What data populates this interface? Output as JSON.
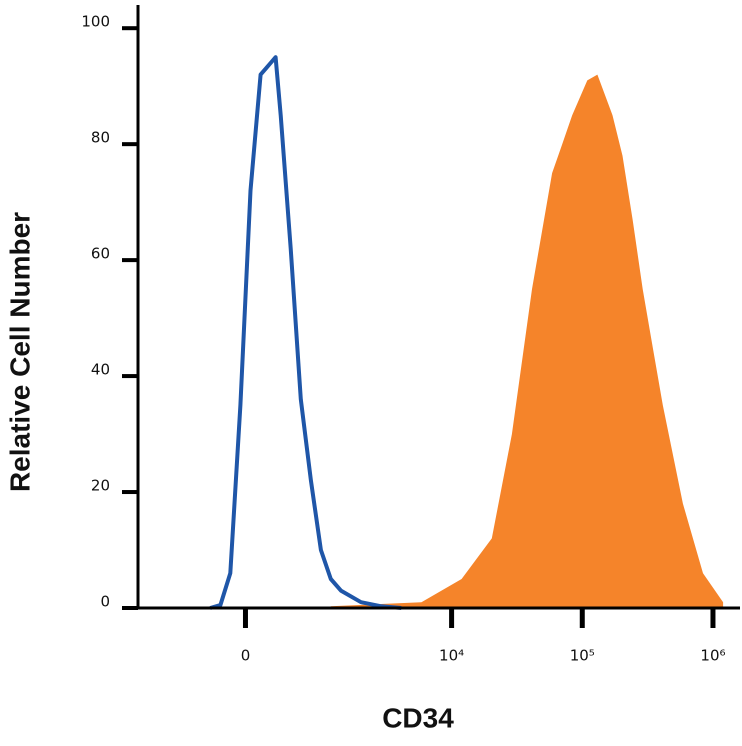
{
  "chart_data": {
    "type": "histogram-overlay",
    "x_label": "CD34",
    "y_label": "Relative Cell Number",
    "xscale": "asinh",
    "xlim": [
      -1720,
      1610000
    ],
    "ylim": [
      0,
      104
    ],
    "xticks": [
      {
        "value": 0,
        "label": "0"
      },
      {
        "value": 10000,
        "label": "10⁴"
      },
      {
        "value": 100000,
        "label": "10⁵"
      },
      {
        "value": 1000000,
        "label": "10⁶"
      }
    ],
    "yticks": [
      0,
      20,
      40,
      60,
      80,
      100
    ],
    "series": [
      {
        "style": "line",
        "color": "#1f56a8",
        "x": [
          -351,
          -242,
          -143,
          -47,
          47,
          143,
          192,
          242,
          295,
          350,
          469,
          603,
          756,
          931,
          1132,
          1374,
          1995,
          2874,
          4110
        ],
        "values": [
          0,
          0.5,
          6,
          35,
          72,
          92,
          93,
          94,
          95,
          85,
          62,
          36,
          22,
          10,
          5,
          3,
          1,
          0.3,
          0
        ]
      },
      {
        "style": "area",
        "color": "#f5842a",
        "x": [
          1132,
          5867,
          11920,
          20300,
          28940,
          41230,
          58780,
          70170,
          83740,
          109200,
          130500,
          170200,
          203300,
          242700,
          289900,
          346100,
          413200,
          588800,
          839500,
          1194600
        ],
        "values": [
          0.3,
          1,
          5,
          12,
          30,
          55,
          75,
          80,
          85,
          91,
          92,
          85,
          78,
          67,
          55,
          45,
          35,
          18,
          6,
          1
        ]
      }
    ]
  }
}
